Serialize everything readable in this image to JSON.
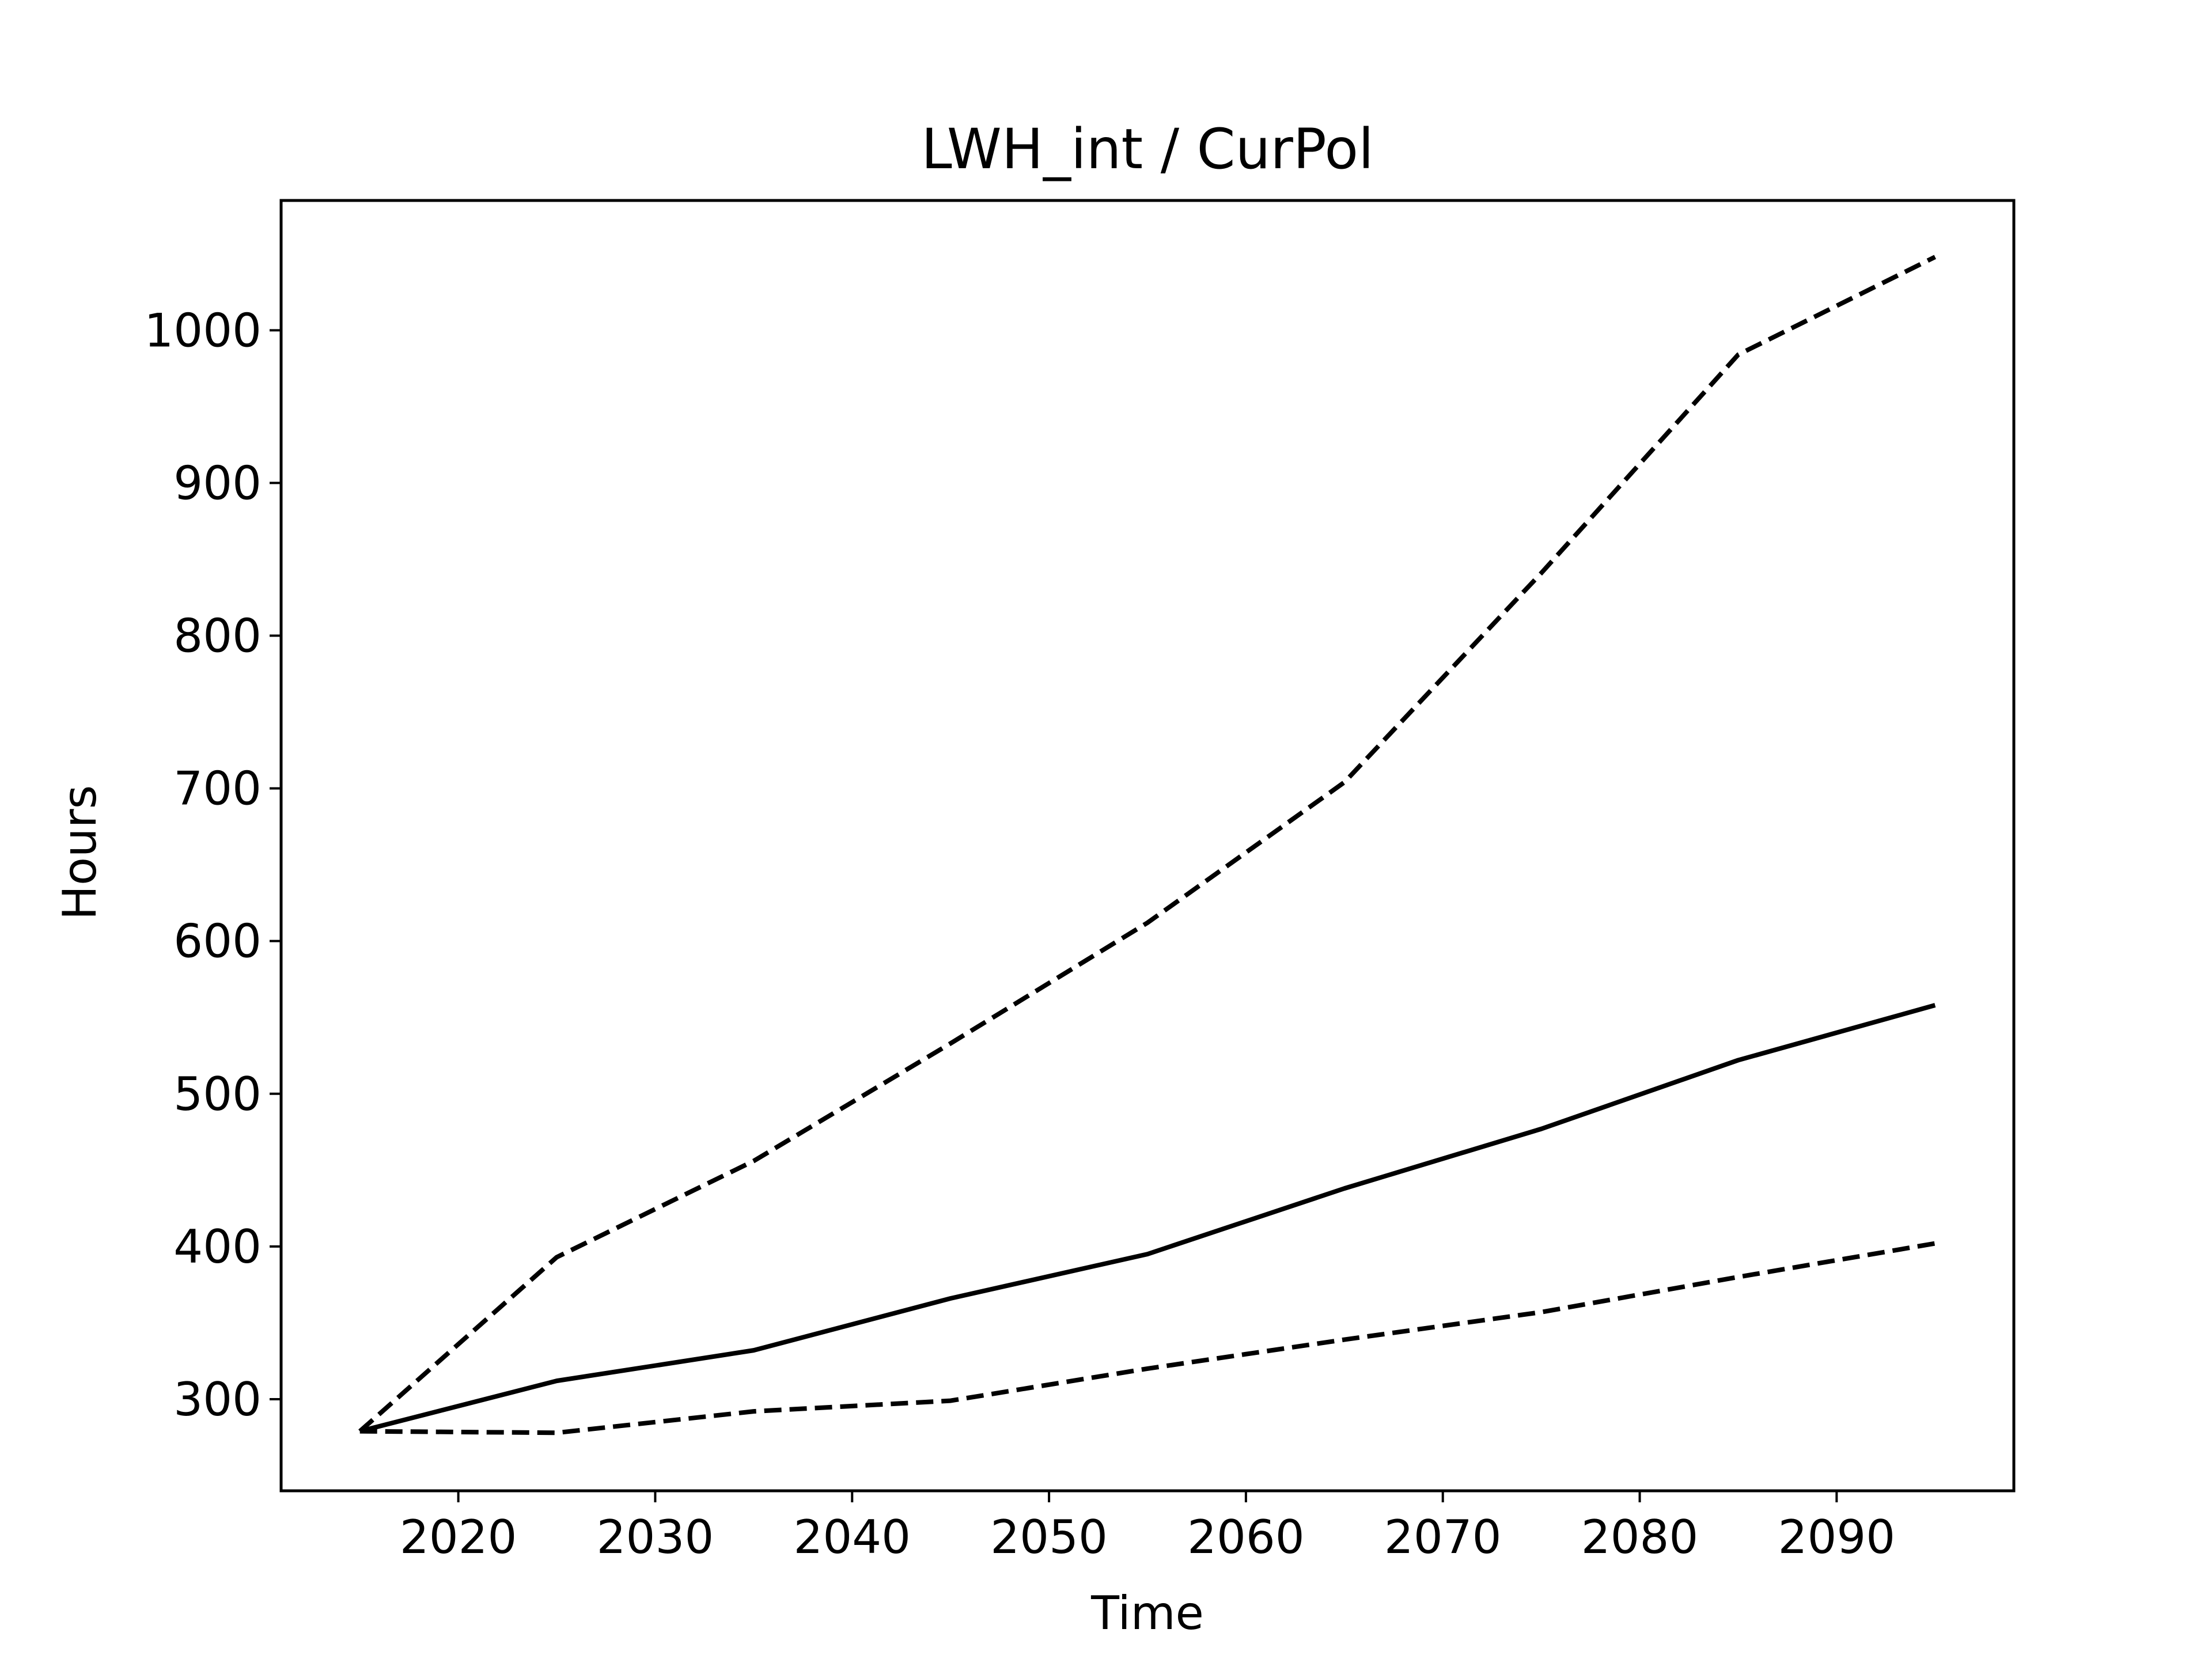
{
  "chart_data": {
    "type": "line",
    "title": "LWH_int / CurPol",
    "xlabel": "Time",
    "ylabel": "Hours",
    "xlim": [
      2011,
      2099
    ],
    "ylim": [
      240,
      1085
    ],
    "x_ticks": [
      2020,
      2030,
      2040,
      2050,
      2060,
      2070,
      2080,
      2090
    ],
    "y_ticks": [
      300,
      400,
      500,
      600,
      700,
      800,
      900,
      1000
    ],
    "grid": false,
    "x": [
      2015,
      2025,
      2035,
      2045,
      2055,
      2065,
      2075,
      2085,
      2095
    ],
    "series": [
      {
        "style": "dashed",
        "color": "#000000",
        "values": [
          279,
          393,
          456,
          533,
          612,
          704,
          841,
          984,
          1048
        ]
      },
      {
        "style": "solid",
        "color": "#000000",
        "values": [
          279,
          312,
          332,
          366,
          395,
          438,
          477,
          522,
          558
        ]
      },
      {
        "style": "dashed",
        "color": "#000000",
        "values": [
          279,
          278,
          292,
          299,
          320,
          339,
          357,
          380,
          402
        ]
      }
    ]
  }
}
